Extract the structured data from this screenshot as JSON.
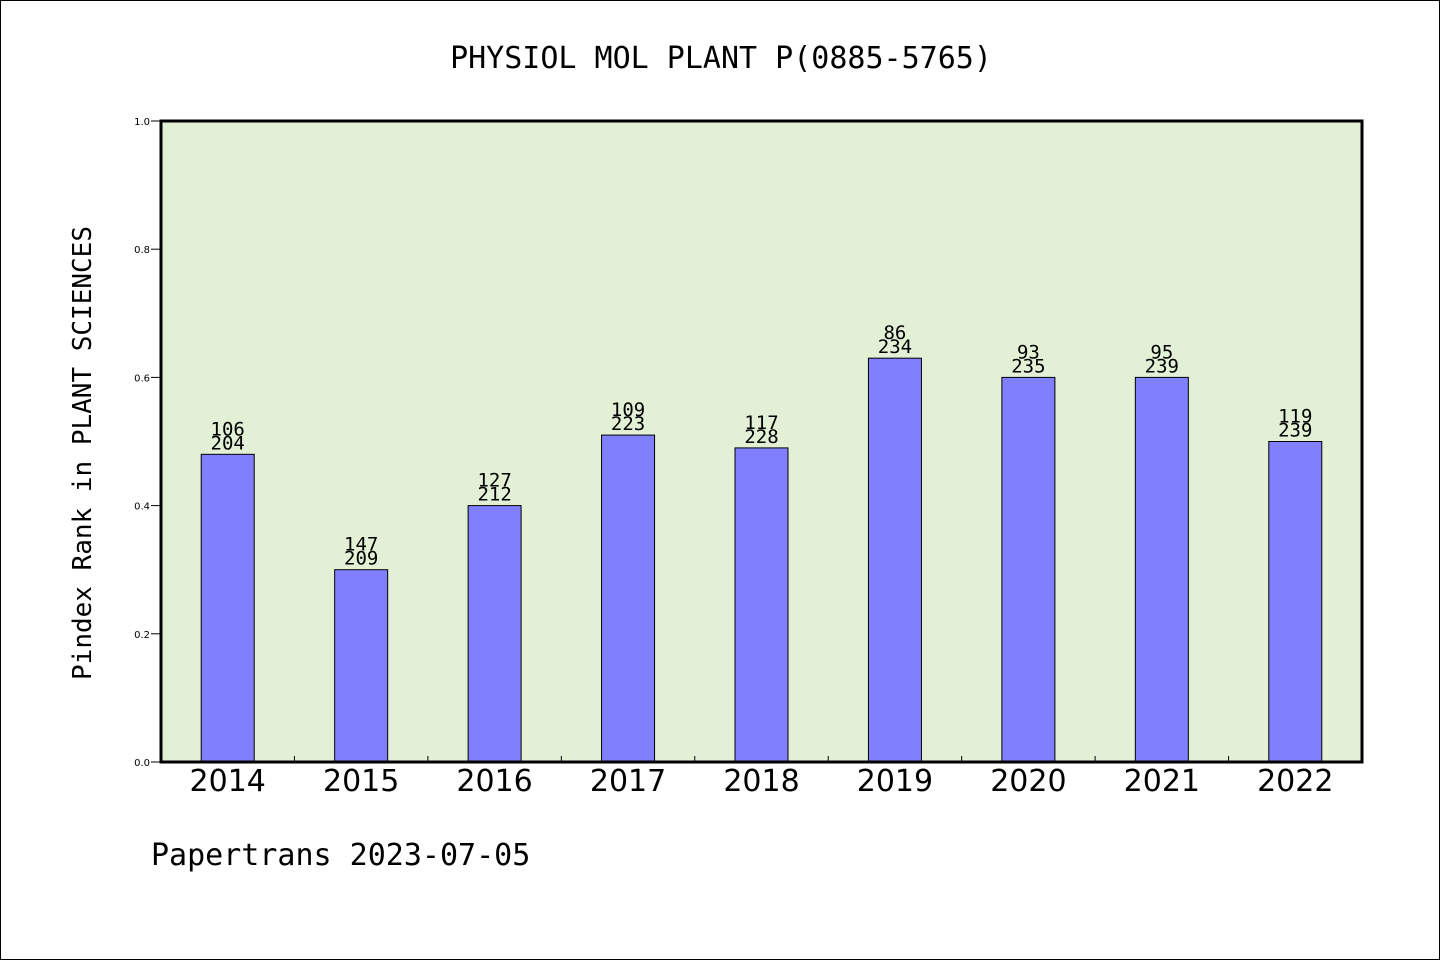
{
  "chart_data": {
    "type": "bar",
    "title": "PHYSIOL MOL PLANT P(0885-5765)",
    "xlabel": "",
    "ylabel": "Pindex Rank in PLANT SCIENCES",
    "categories": [
      "2014",
      "2015",
      "2016",
      "2017",
      "2018",
      "2019",
      "2020",
      "2021",
      "2022"
    ],
    "values": [
      0.48,
      0.3,
      0.4,
      0.51,
      0.49,
      0.63,
      0.6,
      0.6,
      0.5
    ],
    "rank_labels": [
      "106",
      "147",
      "127",
      "109",
      "117",
      "86",
      "93",
      "95",
      "119"
    ],
    "total_labels": [
      "204",
      "209",
      "212",
      "223",
      "228",
      "234",
      "235",
      "239",
      "239"
    ],
    "ylim": [
      0,
      1.0
    ],
    "yticks": [
      "0.0",
      "0.2",
      "0.4",
      "0.6",
      "0.8",
      "1.0"
    ],
    "grid": false,
    "legend": "none",
    "colors": {
      "plot_background": "#e2f0d6",
      "bar_fill": "#8080ff",
      "bar_stroke": "#000000"
    }
  },
  "footer": "Papertrans 2023-07-05"
}
